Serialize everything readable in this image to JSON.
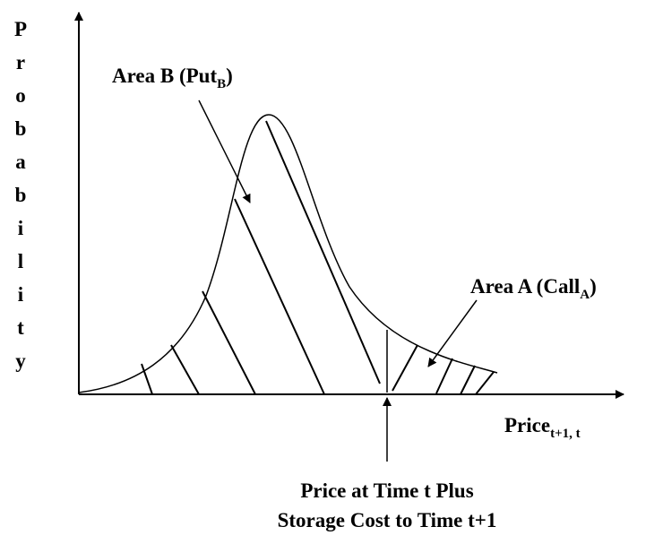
{
  "y_axis_label": "Probability",
  "area_b": {
    "text": "Area B (Put",
    "subscript": "B",
    "close": ")"
  },
  "area_a": {
    "text": "Area A (Call",
    "subscript": "A",
    "close": ")"
  },
  "x_axis_label": {
    "text": "Price",
    "subscript": "t+1, t"
  },
  "marker_label": [
    "Price at Time t Plus",
    "Storage Cost to Time t+1"
  ]
}
